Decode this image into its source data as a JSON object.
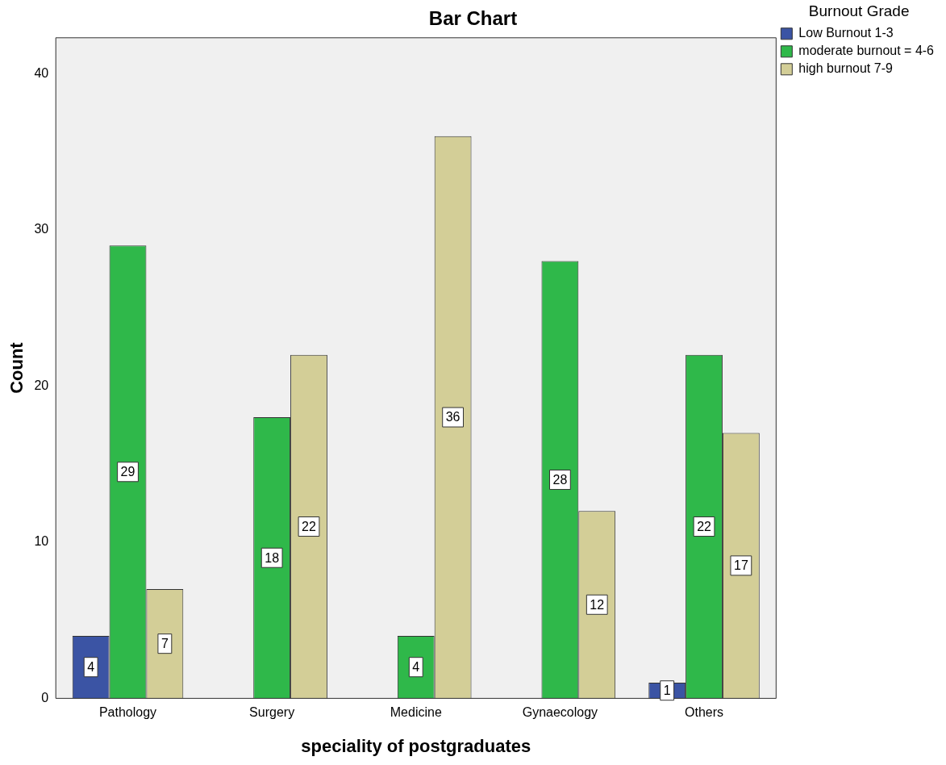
{
  "chart_data": {
    "type": "bar",
    "title": "Bar Chart",
    "xlabel": "speciality of postgraduates",
    "ylabel": "Count",
    "legend_title": "Burnout Grade",
    "categories": [
      "Pathology",
      "Surgery",
      "Medicine",
      "Gynaecology",
      "Others"
    ],
    "series": [
      {
        "name": "Low Burnout 1-3",
        "color": "#3b54a4",
        "values": [
          4,
          null,
          null,
          null,
          1
        ]
      },
      {
        "name": "moderate burnout = 4-6",
        "color": "#2fb84a",
        "values": [
          29,
          18,
          4,
          28,
          22
        ]
      },
      {
        "name": "high burnout 7-9",
        "color": "#d3ce97",
        "values": [
          7,
          22,
          36,
          12,
          17
        ]
      }
    ],
    "ylim": [
      0,
      42.3
    ],
    "yticks": [
      0,
      10,
      20,
      30,
      40
    ],
    "grid": false,
    "legend": "top right",
    "data_labels": true
  }
}
